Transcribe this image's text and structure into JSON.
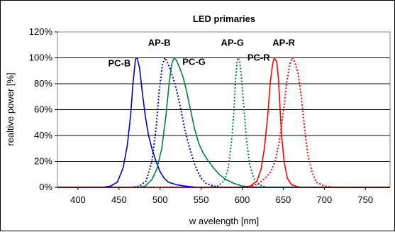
{
  "chart_data": {
    "type": "line",
    "title": "LED primaries",
    "xlabel": "w avelength [nm]",
    "ylabel": "realtive power [%]",
    "xlim": [
      375,
      780
    ],
    "ylim": [
      0,
      120
    ],
    "x_ticks": [
      400,
      450,
      500,
      550,
      600,
      650,
      700,
      750
    ],
    "y_ticks": [
      0,
      20,
      40,
      60,
      80,
      100,
      120
    ],
    "y_tick_labels": [
      "0%",
      "20%",
      "40%",
      "60%",
      "80%",
      "100%",
      "120%"
    ],
    "grid": "horizontal",
    "series": [
      {
        "name": "PC-B",
        "color": "#0000cc",
        "style": "solid",
        "points": [
          [
            375,
            0
          ],
          [
            430,
            0
          ],
          [
            440,
            1
          ],
          [
            448,
            4
          ],
          [
            455,
            15
          ],
          [
            460,
            32
          ],
          [
            464,
            55
          ],
          [
            467,
            80
          ],
          [
            470,
            99
          ],
          [
            472,
            100
          ],
          [
            475,
            92
          ],
          [
            478,
            75
          ],
          [
            482,
            55
          ],
          [
            486,
            40
          ],
          [
            490,
            30
          ],
          [
            495,
            20
          ],
          [
            500,
            12
          ],
          [
            505,
            7
          ],
          [
            510,
            4
          ],
          [
            520,
            2
          ],
          [
            530,
            1
          ],
          [
            545,
            0
          ],
          [
            780,
            0
          ]
        ]
      },
      {
        "name": "AP-B",
        "color": "#0000cc",
        "style": "dotted",
        "points": [
          [
            375,
            0
          ],
          [
            465,
            0
          ],
          [
            475,
            1
          ],
          [
            483,
            5
          ],
          [
            490,
            20
          ],
          [
            495,
            45
          ],
          [
            499,
            75
          ],
          [
            503,
            95
          ],
          [
            506,
            100
          ],
          [
            510,
            95
          ],
          [
            514,
            88
          ],
          [
            518,
            80
          ],
          [
            522,
            70
          ],
          [
            526,
            58
          ],
          [
            530,
            45
          ],
          [
            534,
            35
          ],
          [
            538,
            26
          ],
          [
            542,
            18
          ],
          [
            546,
            12
          ],
          [
            550,
            7
          ],
          [
            556,
            3
          ],
          [
            565,
            1
          ],
          [
            575,
            0
          ],
          [
            780,
            0
          ]
        ]
      },
      {
        "name": "PC-G",
        "color": "#008040",
        "style": "solid",
        "points": [
          [
            375,
            0
          ],
          [
            475,
            0
          ],
          [
            482,
            1
          ],
          [
            490,
            6
          ],
          [
            496,
            14
          ],
          [
            502,
            30
          ],
          [
            507,
            55
          ],
          [
            511,
            80
          ],
          [
            514,
            95
          ],
          [
            517,
            100
          ],
          [
            520,
            98
          ],
          [
            524,
            92
          ],
          [
            528,
            85
          ],
          [
            532,
            75
          ],
          [
            537,
            60
          ],
          [
            542,
            45
          ],
          [
            547,
            34
          ],
          [
            552,
            27
          ],
          [
            558,
            21
          ],
          [
            565,
            15
          ],
          [
            572,
            10
          ],
          [
            580,
            6
          ],
          [
            590,
            3
          ],
          [
            600,
            1
          ],
          [
            615,
            0
          ],
          [
            780,
            0
          ]
        ]
      },
      {
        "name": "AP-G",
        "color": "#008040",
        "style": "dotted",
        "points": [
          [
            375,
            0
          ],
          [
            560,
            0
          ],
          [
            570,
            1
          ],
          [
            578,
            5
          ],
          [
            583,
            15
          ],
          [
            587,
            35
          ],
          [
            590,
            60
          ],
          [
            592,
            85
          ],
          [
            594,
            98
          ],
          [
            595,
            100
          ],
          [
            597,
            97
          ],
          [
            599,
            85
          ],
          [
            602,
            62
          ],
          [
            605,
            38
          ],
          [
            609,
            18
          ],
          [
            614,
            7
          ],
          [
            620,
            2
          ],
          [
            630,
            0
          ],
          [
            780,
            0
          ]
        ]
      },
      {
        "name": "PC-R",
        "color": "#ff0000",
        "style": "solid",
        "points": [
          [
            375,
            0
          ],
          [
            600,
            0
          ],
          [
            610,
            1
          ],
          [
            618,
            5
          ],
          [
            623,
            14
          ],
          [
            627,
            30
          ],
          [
            631,
            55
          ],
          [
            634,
            80
          ],
          [
            637,
            95
          ],
          [
            639,
            100
          ],
          [
            642,
            97
          ],
          [
            644,
            85
          ],
          [
            646,
            62
          ],
          [
            648,
            40
          ],
          [
            651,
            20
          ],
          [
            655,
            7
          ],
          [
            660,
            2
          ],
          [
            670,
            0
          ],
          [
            780,
            0
          ]
        ]
      },
      {
        "name": "AP-R",
        "color": "#ff0000",
        "style": "dotted",
        "points": [
          [
            375,
            0
          ],
          [
            600,
            0
          ],
          [
            612,
            1
          ],
          [
            620,
            3
          ],
          [
            628,
            7
          ],
          [
            635,
            12
          ],
          [
            640,
            20
          ],
          [
            645,
            35
          ],
          [
            650,
            58
          ],
          [
            654,
            80
          ],
          [
            658,
            95
          ],
          [
            661,
            100
          ],
          [
            664,
            97
          ],
          [
            668,
            88
          ],
          [
            672,
            70
          ],
          [
            676,
            45
          ],
          [
            680,
            25
          ],
          [
            685,
            12
          ],
          [
            690,
            4
          ],
          [
            700,
            1
          ],
          [
            710,
            0
          ],
          [
            780,
            0
          ]
        ]
      }
    ]
  }
}
